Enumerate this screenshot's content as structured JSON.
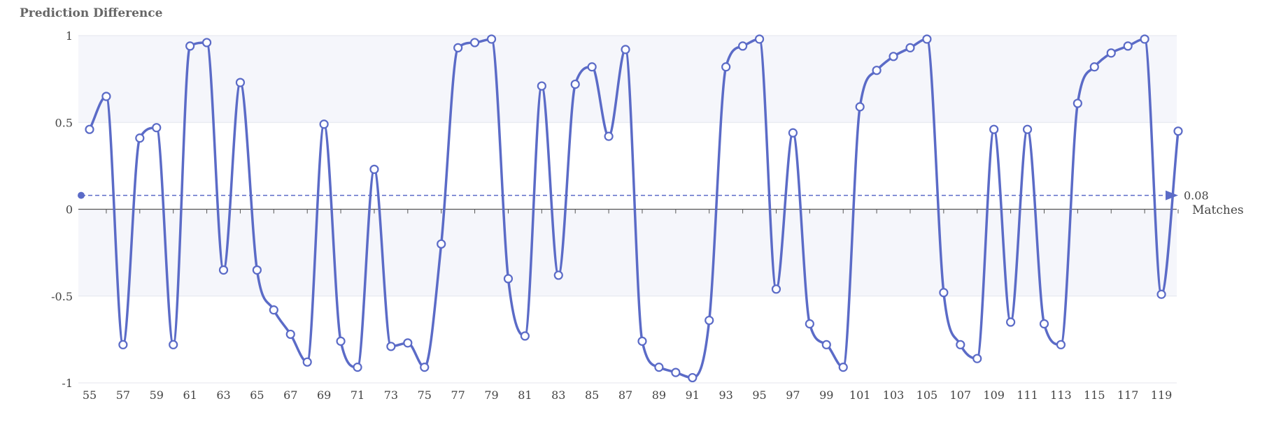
{
  "chart_data": {
    "type": "line",
    "title": "",
    "ylabel": "Prediction Difference",
    "xlabel": "Matches",
    "ylim": [
      -1,
      1
    ],
    "yticks": [
      1,
      0.5,
      0,
      -0.5,
      -1
    ],
    "xtick_step": 2,
    "grid": true,
    "smooth": true,
    "colors": {
      "line": "#5b6bc7",
      "band": "#f5f6fb",
      "grid": "#e4e6ee",
      "axis": "#555555",
      "marker_fill": "#ffffff"
    },
    "x": [
      55,
      56,
      57,
      58,
      59,
      60,
      61,
      62,
      63,
      64,
      65,
      66,
      67,
      68,
      69,
      70,
      71,
      72,
      73,
      74,
      75,
      76,
      77,
      78,
      79,
      80,
      81,
      82,
      83,
      84,
      85,
      86,
      87,
      88,
      89,
      90,
      91,
      92,
      93,
      94,
      95,
      96,
      97,
      98,
      99,
      100,
      101,
      102,
      103,
      104,
      105,
      106,
      107,
      108,
      109,
      110,
      111,
      112,
      113,
      114,
      115,
      116,
      117,
      118,
      119,
      120
    ],
    "series": [
      {
        "values": [
          0.46,
          0.65,
          -0.78,
          0.41,
          0.47,
          -0.78,
          0.94,
          0.96,
          -0.35,
          0.73,
          -0.35,
          -0.58,
          -0.72,
          -0.88,
          0.49,
          -0.76,
          -0.91,
          0.23,
          -0.79,
          -0.77,
          -0.91,
          -0.2,
          0.93,
          0.96,
          0.98,
          -0.4,
          -0.73,
          0.71,
          -0.38,
          0.72,
          0.82,
          0.42,
          0.92,
          -0.76,
          -0.91,
          -0.94,
          -0.97,
          -0.64,
          0.82,
          0.94,
          0.98,
          -0.46,
          0.44,
          -0.66,
          -0.78,
          -0.91,
          0.59,
          0.8,
          0.88,
          0.93,
          0.98,
          -0.48,
          -0.78,
          -0.86,
          0.46,
          -0.65,
          0.46,
          -0.66,
          -0.78,
          0.61,
          0.82,
          0.9,
          0.94,
          0.98,
          -0.49,
          0.45
        ]
      }
    ],
    "reference_line": {
      "value": 0.08,
      "label": "0.08"
    }
  }
}
